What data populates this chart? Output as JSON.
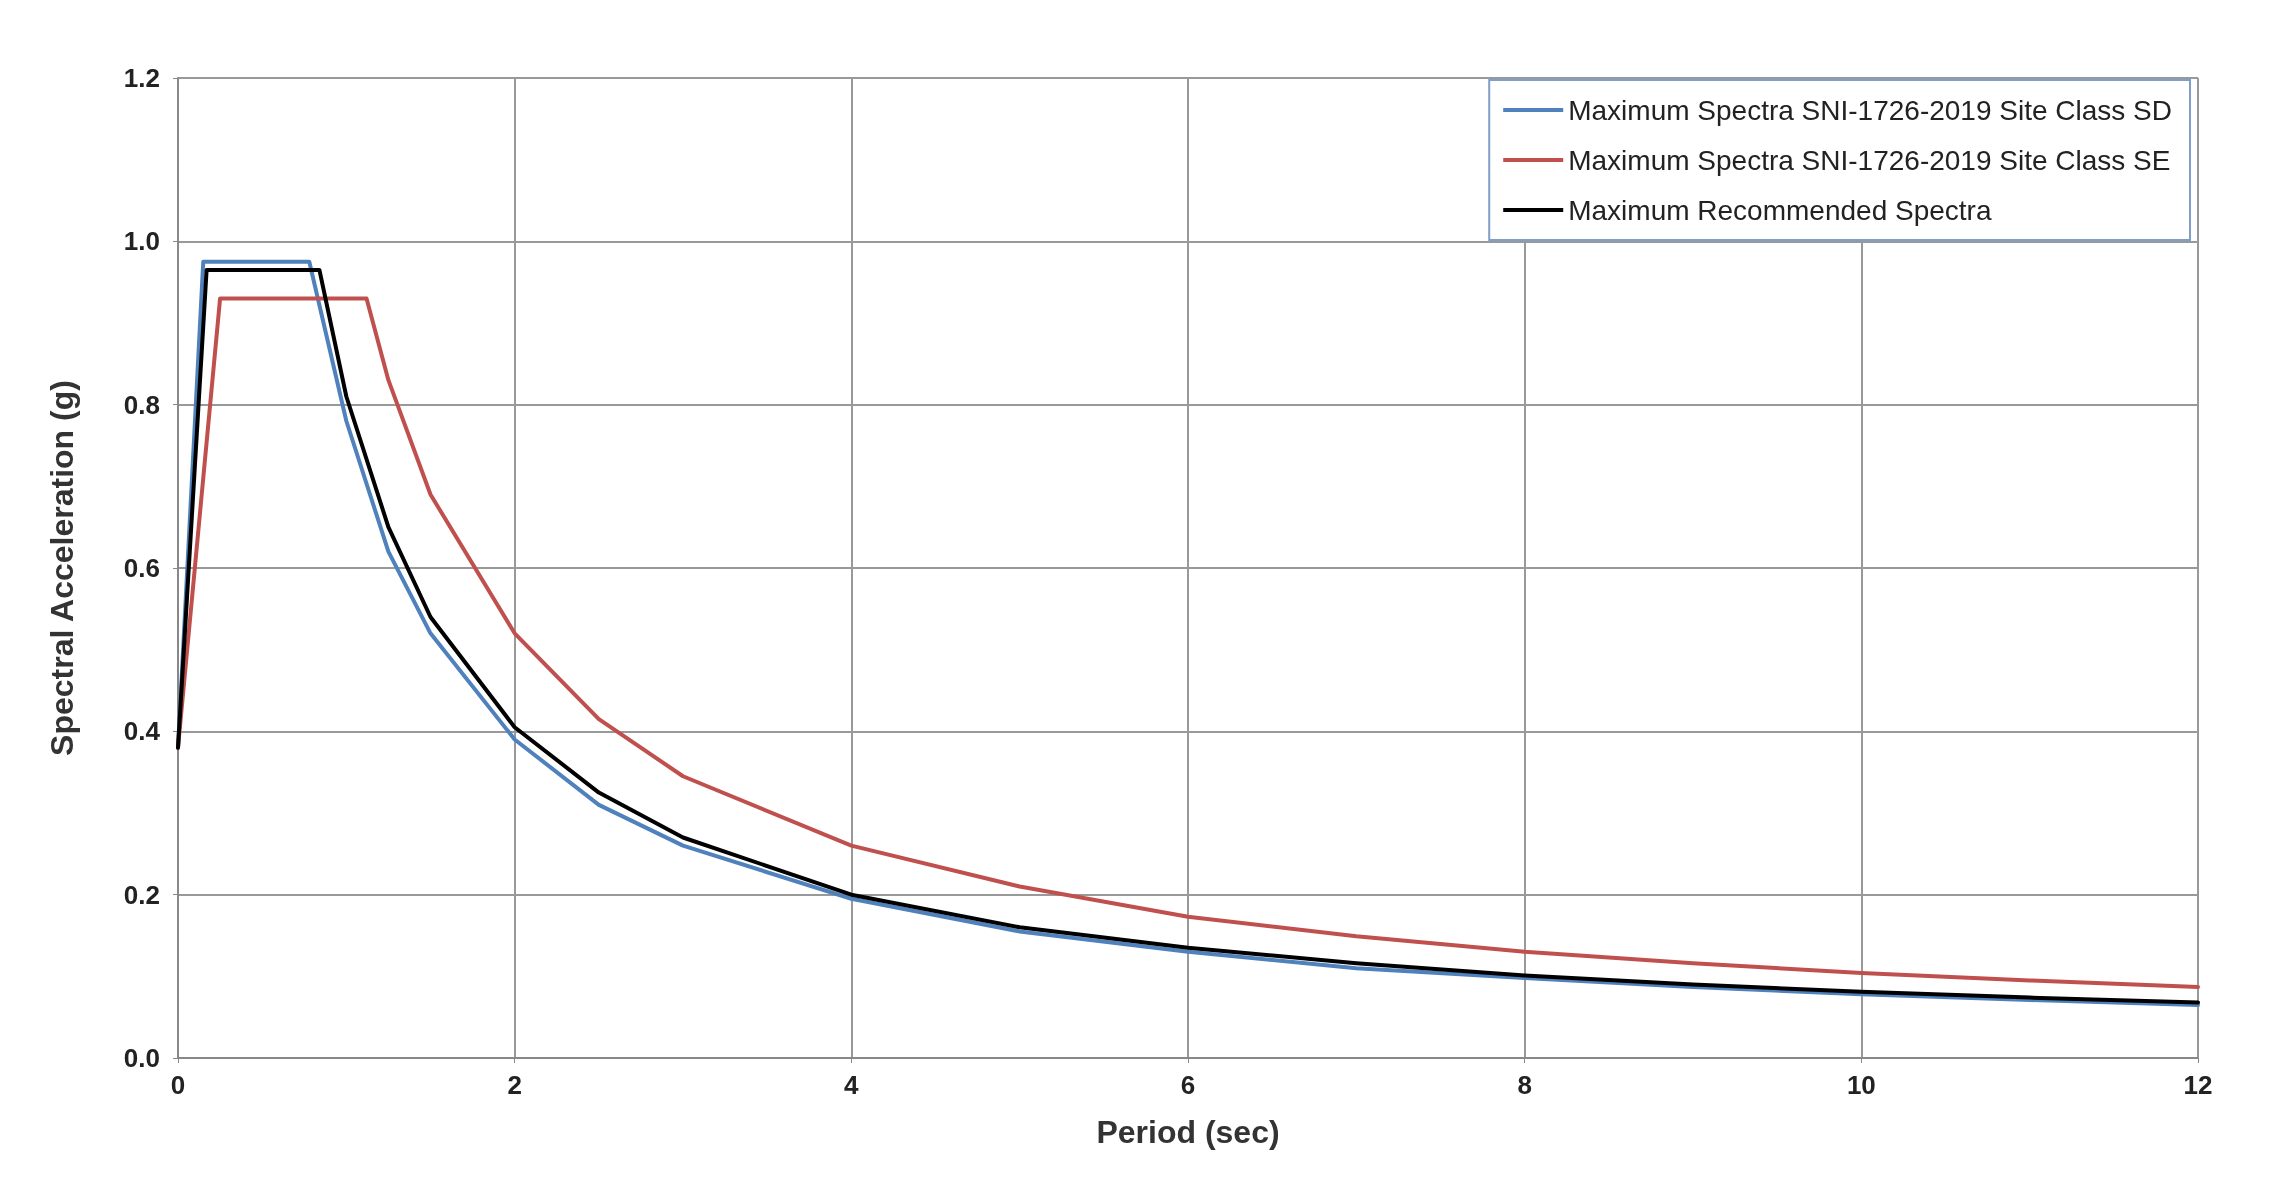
{
  "chart_data": {
    "type": "line",
    "xlabel": "Period (sec)",
    "ylabel": "Spectral Acceleration (g)",
    "xlim": [
      0,
      12
    ],
    "xticks": [
      0,
      2,
      4,
      6,
      8,
      10,
      12
    ],
    "ylim": [
      0,
      1.2
    ],
    "yticks": [
      {
        "value": 0,
        "label": "0.0"
      },
      {
        "value": 0.2,
        "label": "0.2"
      },
      {
        "value": 0.4,
        "label": "0.4"
      },
      {
        "value": 0.6,
        "label": "0.6"
      },
      {
        "value": 0.8,
        "label": "0.8"
      },
      {
        "value": 1,
        "label": "1.0"
      },
      {
        "value": 1.2,
        "label": "1.2"
      }
    ],
    "grid": true,
    "legend": "top right",
    "marker": "none",
    "line_style": "solid",
    "series": [
      {
        "name": "Maximum Spectra SNI-1726-2019 Site Class SD",
        "color": "#4f81bd",
        "x": [
          0,
          0.15,
          0.78,
          1,
          1.25,
          1.5,
          2,
          2.5,
          3,
          4,
          5,
          6,
          7,
          8,
          9,
          10,
          11,
          12
        ],
        "values": [
          0.38,
          0.975,
          0.975,
          0.78,
          0.62,
          0.52,
          0.39,
          0.31,
          0.26,
          0.195,
          0.155,
          0.13,
          0.11,
          0.098,
          0.087,
          0.078,
          0.071,
          0.065
        ]
      },
      {
        "name": "Maximum Spectra SNI-1726-2019 Site Class SE",
        "color": "#c0504d",
        "x": [
          0,
          0.25,
          1.12,
          1.25,
          1.5,
          2,
          2.5,
          3,
          4,
          5,
          6,
          7,
          8,
          9,
          10,
          11,
          12
        ],
        "values": [
          0.38,
          0.93,
          0.93,
          0.83,
          0.69,
          0.52,
          0.415,
          0.345,
          0.26,
          0.21,
          0.173,
          0.149,
          0.13,
          0.116,
          0.104,
          0.095,
          0.087
        ]
      },
      {
        "name": "Maximum Recommended Spectra",
        "color": "#000000",
        "x": [
          0,
          0.17,
          0.84,
          1,
          1.25,
          1.5,
          2,
          2.5,
          3,
          4,
          5,
          6,
          7,
          8,
          9,
          10,
          11,
          12
        ],
        "values": [
          0.38,
          0.965,
          0.965,
          0.81,
          0.65,
          0.54,
          0.405,
          0.325,
          0.27,
          0.2,
          0.16,
          0.135,
          0.116,
          0.101,
          0.09,
          0.081,
          0.074,
          0.068
        ]
      }
    ]
  }
}
